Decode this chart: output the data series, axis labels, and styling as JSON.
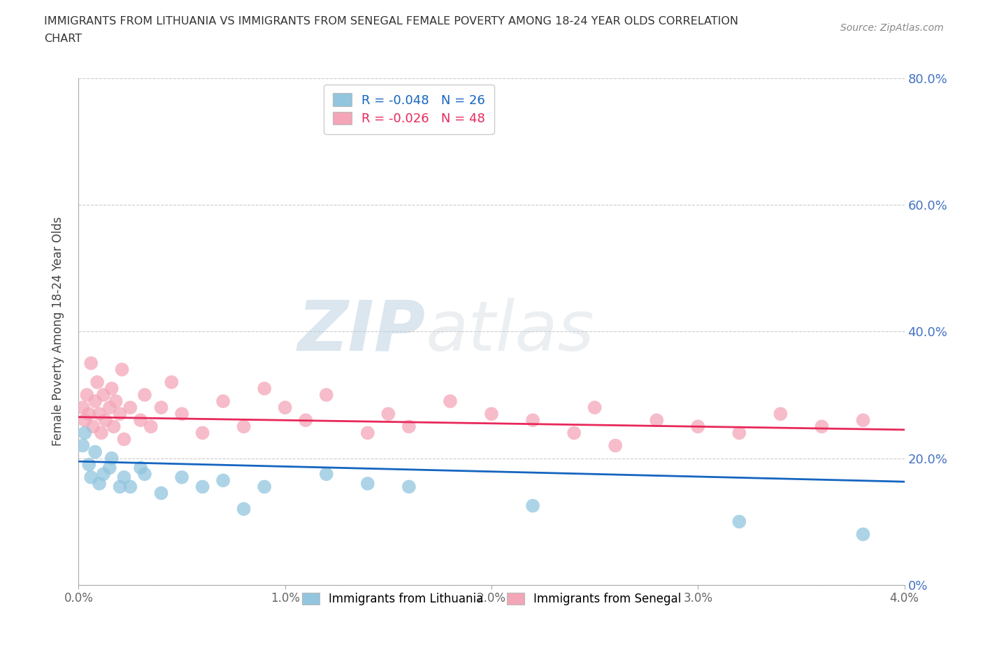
{
  "title": "IMMIGRANTS FROM LITHUANIA VS IMMIGRANTS FROM SENEGAL FEMALE POVERTY AMONG 18-24 YEAR OLDS CORRELATION\nCHART",
  "source": "Source: ZipAtlas.com",
  "ylabel": "Female Poverty Among 18-24 Year Olds",
  "xlim": [
    0.0,
    0.04
  ],
  "ylim": [
    0.0,
    0.8
  ],
  "xticks": [
    0.0,
    0.01,
    0.02,
    0.03,
    0.04
  ],
  "yticks": [
    0.0,
    0.2,
    0.4,
    0.6,
    0.8
  ],
  "xticklabels": [
    "0.0%",
    "1.0%",
    "2.0%",
    "3.0%",
    "4.0%"
  ],
  "yticklabels": [
    "0%",
    "20.0%",
    "40.0%",
    "60.0%",
    "80.0%"
  ],
  "watermark": "ZIPatlas",
  "legend_R_lithuania": "R = -0.048",
  "legend_N_lithuania": "N = 26",
  "legend_R_senegal": "R = -0.026",
  "legend_N_senegal": "N = 48",
  "color_lithuania": "#92C5DE",
  "color_senegal": "#F4A6B8",
  "line_color_lithuania": "#1565C0",
  "line_color_senegal": "#E8285A",
  "lithuania_x": [
    0.0002,
    0.0003,
    0.0005,
    0.0006,
    0.0008,
    0.001,
    0.0012,
    0.0015,
    0.0016,
    0.002,
    0.0022,
    0.0025,
    0.003,
    0.0032,
    0.004,
    0.005,
    0.006,
    0.007,
    0.008,
    0.009,
    0.012,
    0.014,
    0.016,
    0.022,
    0.032,
    0.038
  ],
  "lithuania_y": [
    0.22,
    0.24,
    0.19,
    0.17,
    0.21,
    0.16,
    0.175,
    0.185,
    0.2,
    0.155,
    0.17,
    0.155,
    0.185,
    0.175,
    0.145,
    0.17,
    0.155,
    0.165,
    0.12,
    0.155,
    0.175,
    0.16,
    0.155,
    0.125,
    0.1,
    0.08
  ],
  "senegal_x": [
    0.0002,
    0.0003,
    0.0004,
    0.0005,
    0.0006,
    0.0007,
    0.0008,
    0.0009,
    0.001,
    0.0011,
    0.0012,
    0.0013,
    0.0015,
    0.0016,
    0.0017,
    0.0018,
    0.002,
    0.0021,
    0.0022,
    0.0025,
    0.003,
    0.0032,
    0.0035,
    0.004,
    0.0045,
    0.005,
    0.006,
    0.007,
    0.008,
    0.009,
    0.01,
    0.011,
    0.012,
    0.014,
    0.015,
    0.016,
    0.018,
    0.02,
    0.022,
    0.024,
    0.025,
    0.026,
    0.028,
    0.03,
    0.032,
    0.034,
    0.036,
    0.038
  ],
  "senegal_y": [
    0.28,
    0.26,
    0.3,
    0.27,
    0.35,
    0.25,
    0.29,
    0.32,
    0.27,
    0.24,
    0.3,
    0.26,
    0.28,
    0.31,
    0.25,
    0.29,
    0.27,
    0.34,
    0.23,
    0.28,
    0.26,
    0.3,
    0.25,
    0.28,
    0.32,
    0.27,
    0.24,
    0.29,
    0.25,
    0.31,
    0.28,
    0.26,
    0.3,
    0.24,
    0.27,
    0.25,
    0.29,
    0.27,
    0.26,
    0.24,
    0.28,
    0.22,
    0.26,
    0.25,
    0.24,
    0.27,
    0.25,
    0.26
  ],
  "lith_line_y0": 0.195,
  "lith_line_y1": 0.163,
  "sene_line_y0": 0.265,
  "sene_line_y1": 0.245
}
